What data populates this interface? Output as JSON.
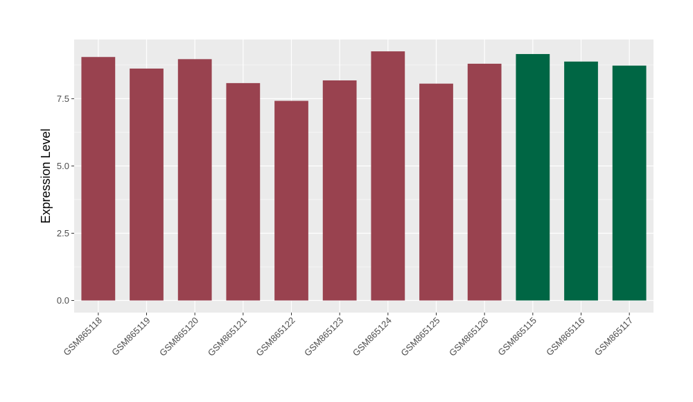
{
  "chart_data": {
    "type": "bar",
    "title": "",
    "xlabel": "",
    "ylabel": "Expression Level",
    "categories": [
      "GSM865118",
      "GSM865119",
      "GSM865120",
      "GSM865121",
      "GSM865122",
      "GSM865123",
      "GSM865124",
      "GSM865125",
      "GSM865126",
      "GSM865115",
      "GSM865116",
      "GSM865117"
    ],
    "values": [
      9.05,
      8.62,
      8.97,
      8.08,
      7.42,
      8.18,
      9.26,
      8.06,
      8.8,
      9.16,
      8.88,
      8.73
    ],
    "groups": [
      "g1",
      "g1",
      "g1",
      "g1",
      "g1",
      "g1",
      "g1",
      "g1",
      "g1",
      "g2",
      "g2",
      "g2"
    ],
    "group_colors": {
      "g1": "#99424f",
      "g2": "#006644"
    },
    "yticks": [
      0.0,
      2.5,
      5.0,
      7.5
    ],
    "ytick_labels": [
      "0.0",
      "2.5",
      "5.0",
      "7.5"
    ],
    "ylim": [
      -0.45,
      9.7
    ],
    "grid": true,
    "legend": "none",
    "panel_background": "#ebebeb",
    "grid_color": "#ffffff"
  }
}
